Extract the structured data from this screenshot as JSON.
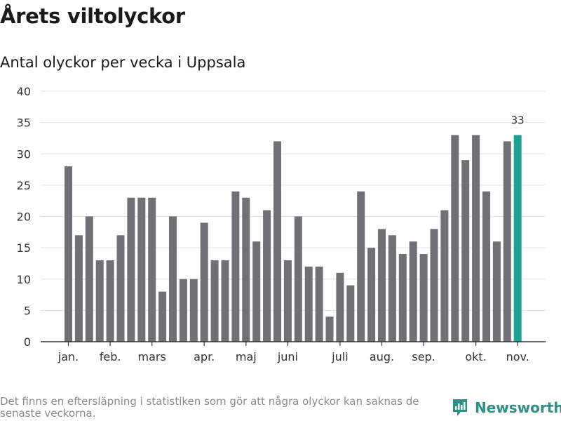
{
  "header": {
    "title": "Årets viltolyckor",
    "subtitle": "Antal olyckor per vecka i Uppsala"
  },
  "footer": {
    "note": "Det finns en eftersläpning i statistiken som gör att några olyckor kan saknas de senaste veckorna.",
    "brand": "Newsworthy"
  },
  "colors": {
    "bar": "#717075",
    "highlight": "#1aa394",
    "grid": "#e3e3e3",
    "axis": "#333333",
    "brand": "#2f8f83"
  },
  "chart_data": {
    "type": "bar",
    "title": "Antal olyckor per vecka i Uppsala",
    "xlabel": "",
    "ylabel": "",
    "ylim": [
      0,
      40
    ],
    "yticks": [
      0,
      5,
      10,
      15,
      20,
      25,
      30,
      35,
      40
    ],
    "grid": true,
    "weeks": [
      1,
      2,
      3,
      4,
      5,
      6,
      7,
      8,
      9,
      10,
      11,
      12,
      13,
      14,
      15,
      16,
      17,
      18,
      19,
      20,
      21,
      22,
      23,
      24,
      25,
      26,
      27,
      28,
      29,
      30,
      31,
      32,
      33,
      34,
      35,
      36,
      37,
      38,
      39,
      40,
      41,
      42,
      43,
      44
    ],
    "values": [
      28,
      17,
      20,
      13,
      13,
      17,
      23,
      23,
      23,
      8,
      20,
      10,
      10,
      19,
      13,
      13,
      24,
      23,
      16,
      21,
      32,
      13,
      20,
      12,
      12,
      4,
      11,
      9,
      24,
      15,
      18,
      17,
      14,
      16,
      14,
      18,
      21,
      33,
      29,
      33,
      24,
      16,
      32,
      33
    ],
    "highlight_index": 43,
    "highlight_label": "33",
    "month_labels": [
      {
        "label": "jan.",
        "week": 1
      },
      {
        "label": "feb.",
        "week": 5
      },
      {
        "label": "mars",
        "week": 9
      },
      {
        "label": "apr.",
        "week": 14
      },
      {
        "label": "maj",
        "week": 18
      },
      {
        "label": "juni",
        "week": 22
      },
      {
        "label": "juli",
        "week": 27
      },
      {
        "label": "aug.",
        "week": 31
      },
      {
        "label": "sep.",
        "week": 35
      },
      {
        "label": "okt.",
        "week": 40
      },
      {
        "label": "nov.",
        "week": 44
      }
    ]
  }
}
